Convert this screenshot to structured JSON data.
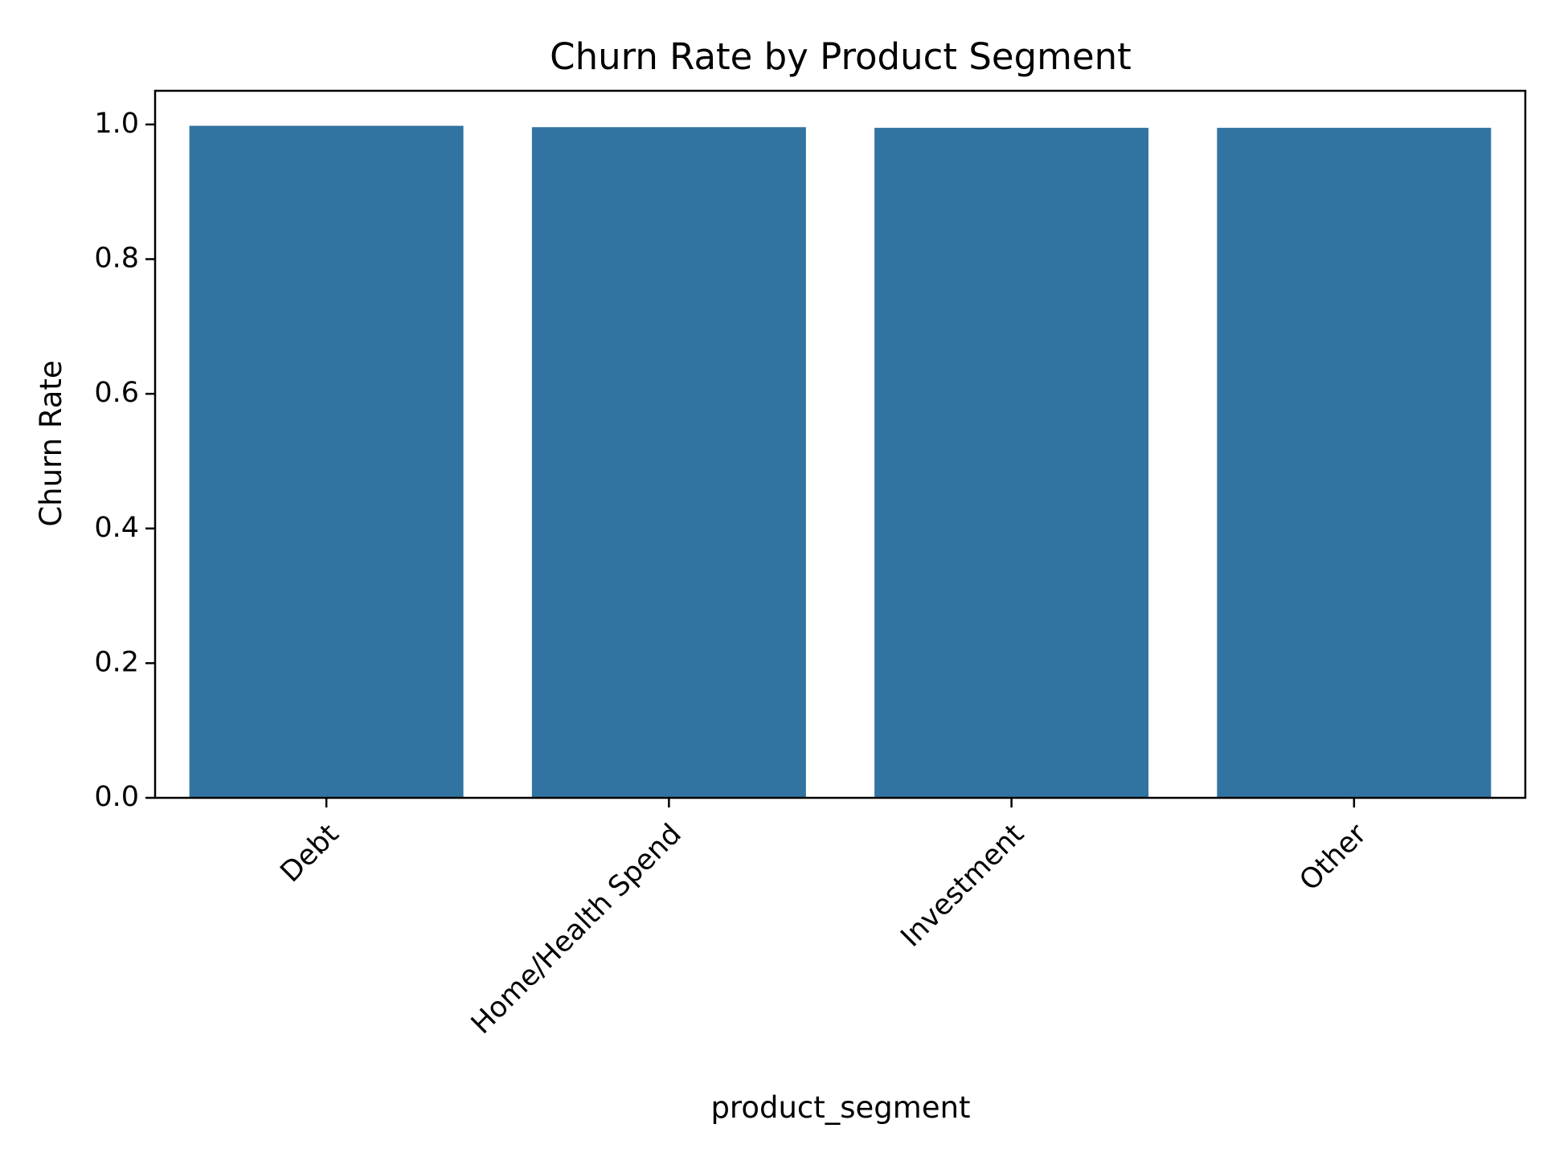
{
  "chart_data": {
    "type": "bar",
    "title": "Churn Rate by Product Segment",
    "xlabel": "product_segment",
    "ylabel": "Churn Rate",
    "categories": [
      "Debt",
      "Home/Health Spend",
      "Investment",
      "Other"
    ],
    "values": [
      0.998,
      0.996,
      0.995,
      0.995
    ],
    "ylim": [
      0,
      1.05
    ],
    "yticks": [
      0.0,
      0.2,
      0.4,
      0.6,
      0.8,
      1.0
    ],
    "ytick_labels": [
      "0.0",
      "0.2",
      "0.4",
      "0.6",
      "0.8",
      "1.0"
    ],
    "grid": false,
    "legend": "none",
    "bar_color": "#3274a1"
  }
}
